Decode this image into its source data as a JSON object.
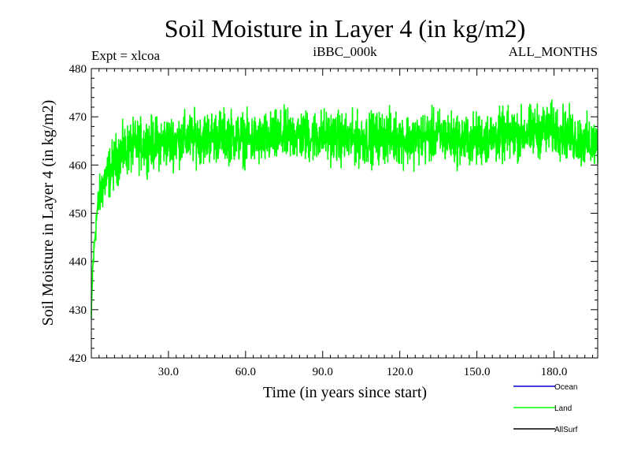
{
  "chart_data": {
    "type": "line",
    "title": "Soil Moisture in Layer 4 (in kg/m2)",
    "subtitle_left": "Expt = xlcoa",
    "subtitle_center": "iBBC_000k",
    "subtitle_right": "ALL_MONTHS",
    "xlabel": "Time (in years since start)",
    "ylabel": "Soil Moisture in Layer 4 (in kg/m2)",
    "xlim": [
      0,
      197
    ],
    "ylim": [
      420,
      480
    ],
    "x_ticks": [
      30,
      60,
      90,
      120,
      150,
      180
    ],
    "x_tick_labels": [
      "30.0",
      "60.0",
      "90.0",
      "120.0",
      "150.0",
      "180.0"
    ],
    "y_ticks": [
      420,
      430,
      440,
      450,
      460,
      470,
      480
    ],
    "y_tick_labels": [
      "420",
      "430",
      "440",
      "450",
      "460",
      "470",
      "480"
    ],
    "grid": false,
    "legend": [
      {
        "name": "Ocean",
        "color": "#0000cc"
      },
      {
        "name": "Land",
        "color": "#00ff00"
      },
      {
        "name": "AllSurf",
        "color": "#000000"
      }
    ],
    "series": [
      {
        "name": "Land",
        "color": "#00ff00",
        "x": [
          0,
          0.5,
          1,
          1.5,
          2,
          3,
          4,
          5,
          6,
          7,
          8,
          9,
          10,
          12,
          15,
          20,
          25,
          30,
          35,
          40,
          45,
          50,
          55,
          60,
          65,
          70,
          75,
          80,
          85,
          90,
          95,
          100,
          105,
          110,
          115,
          120,
          125,
          130,
          135,
          140,
          145,
          150,
          155,
          160,
          165,
          170,
          175,
          180,
          185,
          190,
          195,
          197
        ],
        "values": [
          428,
          438,
          442,
          446,
          449,
          453,
          455,
          456.5,
          457.5,
          458.5,
          459.5,
          460.5,
          461.5,
          462.5,
          463.5,
          464.3,
          464.6,
          464.8,
          465.4,
          465.6,
          465.8,
          466.2,
          466.0,
          465.4,
          465.0,
          465.5,
          466.0,
          466.3,
          465.8,
          466.2,
          465.8,
          465.3,
          465.3,
          465.6,
          466.0,
          465.5,
          465.2,
          465.7,
          466.2,
          465.6,
          465.0,
          465.3,
          465.7,
          466.0,
          466.3,
          466.8,
          467.2,
          467.4,
          466.5,
          465.2,
          464.3,
          464.0
        ],
        "noise_amplitude": 4.5
      }
    ]
  }
}
